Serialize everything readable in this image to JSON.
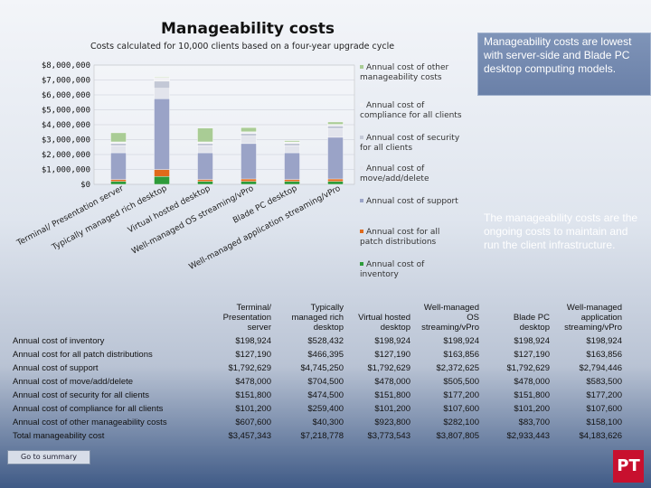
{
  "slide": {
    "title": "Manageability costs",
    "subtitle": "Costs calculated for 10,000 clients based on a four-year upgrade cycle",
    "note_top": "Manageability costs are lowest with server-side and Blade PC desktop computing models.",
    "note_right": "The manageability costs are the ongoing costs to maintain and run the client infrastructure.",
    "goto_label": "Go to summary",
    "logo_text": "PT"
  },
  "chart_data": {
    "type": "bar",
    "stacked": true,
    "categories": [
      "Terminal/ Presentation server",
      "Typically managed rich desktop",
      "Virtual hosted desktop",
      "Well-managed OS streaming/vPro",
      "Blade PC desktop",
      "Well-managed application streaming/vPro"
    ],
    "series": [
      {
        "name": "Annual cost of inventory",
        "color": "#2e9b3a",
        "values": [
          198924,
          528432,
          198924,
          198924,
          198924,
          198924
        ]
      },
      {
        "name": "Annual cost for all patch distributions",
        "color": "#e06a1b",
        "values": [
          127190,
          466395,
          127190,
          163856,
          127190,
          163856
        ]
      },
      {
        "name": "Annual cost of support",
        "color": "#9aa3c7",
        "values": [
          1792629,
          4745250,
          1792629,
          2372625,
          1792629,
          2794446
        ]
      },
      {
        "name": "Annual cost of move/add/delete",
        "color": "#e2e4ec",
        "values": [
          478000,
          704500,
          478000,
          505500,
          478000,
          583500
        ]
      },
      {
        "name": "Annual cost of security for all clients",
        "color": "#c3c8d6",
        "values": [
          151800,
          474500,
          151800,
          177200,
          151800,
          177200
        ]
      },
      {
        "name": "Annual cost of compliance for all clients",
        "color": "#f1f1f4",
        "values": [
          101200,
          259400,
          101200,
          107600,
          101200,
          107600
        ]
      },
      {
        "name": "Annual cost of other manageability costs",
        "color": "#a9cc95",
        "values": [
          607600,
          40300,
          923800,
          282100,
          83700,
          158100
        ]
      }
    ],
    "y_ticks": [
      "$0",
      "$1,000,000",
      "$2,000,000",
      "$3,000,000",
      "$4,000,000",
      "$5,000,000",
      "$6,000,000",
      "$7,000,000",
      "$8,000,000"
    ],
    "ylim": [
      0,
      8000000
    ],
    "x_tick_labels": [
      "Terminal/ Presentation server",
      "Typically managed rich desktop",
      "Virtual hosted desktop",
      "Well-managed OS streaming/vPro",
      "Blade PC desktop",
      "Well-managed application streaming/vPro"
    ],
    "legend_order": [
      "Annual cost of other manageability costs",
      "Annual cost of compliance for all clients",
      "Annual cost of security for all clients",
      "Annual cost of move/add/delete",
      "Annual cost of support",
      "Annual cost for all patch distributions",
      "Annual cost of inventory"
    ],
    "legend_position": "right",
    "grid": true
  },
  "table": {
    "headers": [
      "Terminal/ Presentation server",
      "Typically managed rich desktop",
      "Virtual hosted desktop",
      "Well-managed OS streaming/vPro",
      "Blade PC desktop",
      "Well-managed application streaming/vPro"
    ],
    "rows": [
      {
        "label": "Annual cost of inventory",
        "cells": [
          "$198,924",
          "$528,432",
          "$198,924",
          "$198,924",
          "$198,924",
          "$198,924"
        ]
      },
      {
        "label": "Annual cost for all patch distributions",
        "cells": [
          "$127,190",
          "$466,395",
          "$127,190",
          "$163,856",
          "$127,190",
          "$163,856"
        ]
      },
      {
        "label": "Annual cost of support",
        "cells": [
          "$1,792,629",
          "$4,745,250",
          "$1,792,629",
          "$2,372,625",
          "$1,792,629",
          "$2,794,446"
        ]
      },
      {
        "label": "Annual cost of move/add/delete",
        "cells": [
          "$478,000",
          "$704,500",
          "$478,000",
          "$505,500",
          "$478,000",
          "$583,500"
        ]
      },
      {
        "label": "Annual cost of security for all clients",
        "cells": [
          "$151,800",
          "$474,500",
          "$151,800",
          "$177,200",
          "$151,800",
          "$177,200"
        ]
      },
      {
        "label": "Annual cost of compliance for all clients",
        "cells": [
          "$101,200",
          "$259,400",
          "$101,200",
          "$107,600",
          "$101,200",
          "$107,600"
        ]
      },
      {
        "label": "Annual cost of other manageability costs",
        "cells": [
          "$607,600",
          "$40,300",
          "$923,800",
          "$282,100",
          "$83,700",
          "$158,100"
        ]
      },
      {
        "label": "Total manageability cost",
        "cells": [
          "$3,457,343",
          "$7,218,778",
          "$3,773,543",
          "$3,807,805",
          "$2,933,443",
          "$4,183,626"
        ]
      }
    ]
  }
}
